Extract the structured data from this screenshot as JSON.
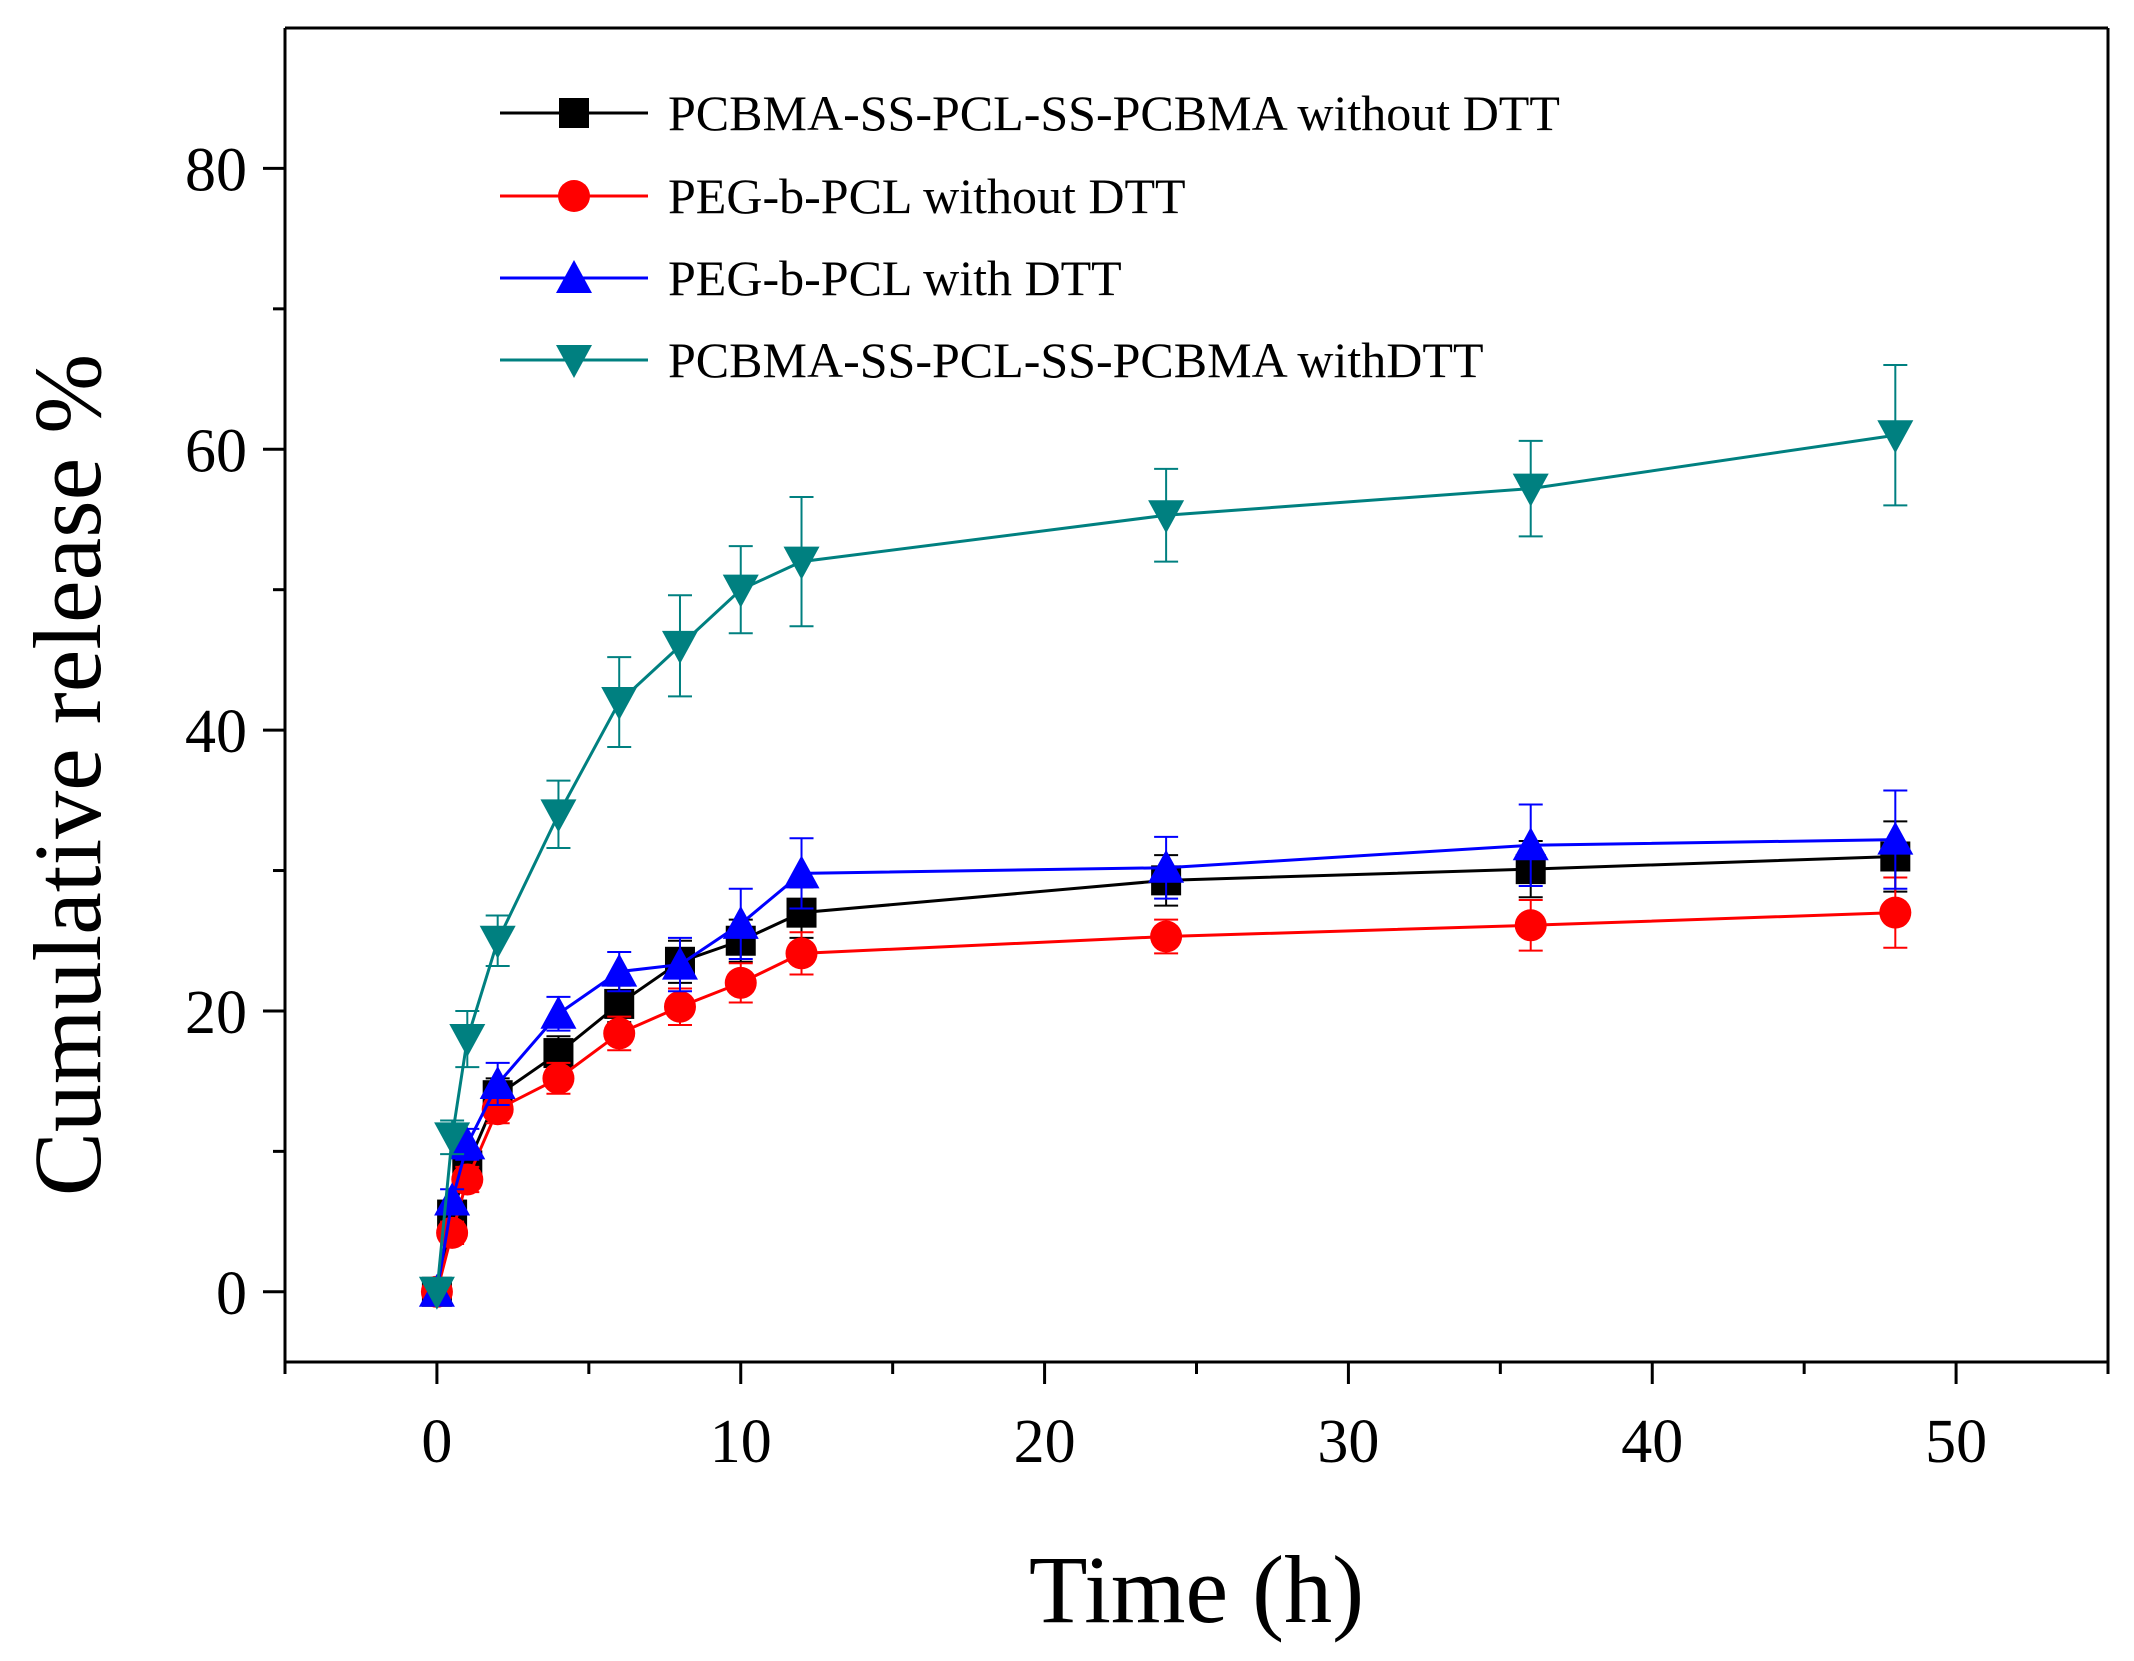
{
  "chart_data": {
    "type": "line",
    "title": "",
    "xlabel": "Time (h)",
    "ylabel": "Cumulative release %",
    "xlim": [
      -5,
      55
    ],
    "ylim": [
      -5,
      90
    ],
    "xticks": [
      0,
      10,
      20,
      30,
      40,
      50
    ],
    "yticks": [
      0,
      20,
      40,
      60,
      80
    ],
    "x_minor_ticks": [
      -5,
      5,
      15,
      25,
      35,
      45,
      55
    ],
    "y_minor_ticks": [
      10,
      30,
      50,
      70
    ],
    "grid": false,
    "legend_position": "top-center",
    "x": [
      0,
      0.5,
      1,
      2,
      4,
      6,
      8,
      10,
      12,
      24,
      36,
      48
    ],
    "series": [
      {
        "name": "PCBMA-SS-PCL-SS-PCBMA without DTT",
        "color": "#000000",
        "marker": "square",
        "values": [
          0,
          5.5,
          9,
          14,
          17,
          20.5,
          23.5,
          25,
          27,
          29.3,
          30.1,
          31
        ],
        "errors": [
          0,
          0.8,
          1,
          1.2,
          1.2,
          1.3,
          1.5,
          1.5,
          1.8,
          1.8,
          2,
          2.5
        ]
      },
      {
        "name": "PEG-b-PCL without DTT",
        "color": "#ff0000",
        "marker": "circle",
        "values": [
          0,
          4.2,
          8,
          13,
          15.2,
          18.4,
          20.3,
          22,
          24.1,
          25.3,
          26.1,
          27
        ],
        "errors": [
          0,
          0.8,
          0.9,
          1,
          1.1,
          1.2,
          1.3,
          1.4,
          1.5,
          1.2,
          1.8,
          2.5
        ]
      },
      {
        "name": "PEG-b-PCL with DTT",
        "color": "#0000ff",
        "marker": "triangle-up",
        "values": [
          0,
          6.5,
          10.5,
          14.8,
          19.8,
          22.8,
          23.3,
          26.2,
          29.8,
          30.2,
          31.8,
          32.2
        ],
        "errors": [
          0,
          0.8,
          1.1,
          1.5,
          1.2,
          1.4,
          1.9,
          2.5,
          2.5,
          2.2,
          2.9,
          3.5
        ]
      },
      {
        "name": "PCBMA-SS-PCL-SS-PCBMA withDTT",
        "color": "#008080",
        "marker": "triangle-down",
        "values": [
          0,
          11,
          18,
          25,
          34,
          42,
          46,
          50,
          52,
          55.3,
          57.2,
          61
        ],
        "errors": [
          0,
          1.2,
          2,
          1.8,
          2.4,
          3.2,
          3.6,
          3.1,
          4.6,
          3.3,
          3.4,
          5
        ]
      }
    ]
  }
}
